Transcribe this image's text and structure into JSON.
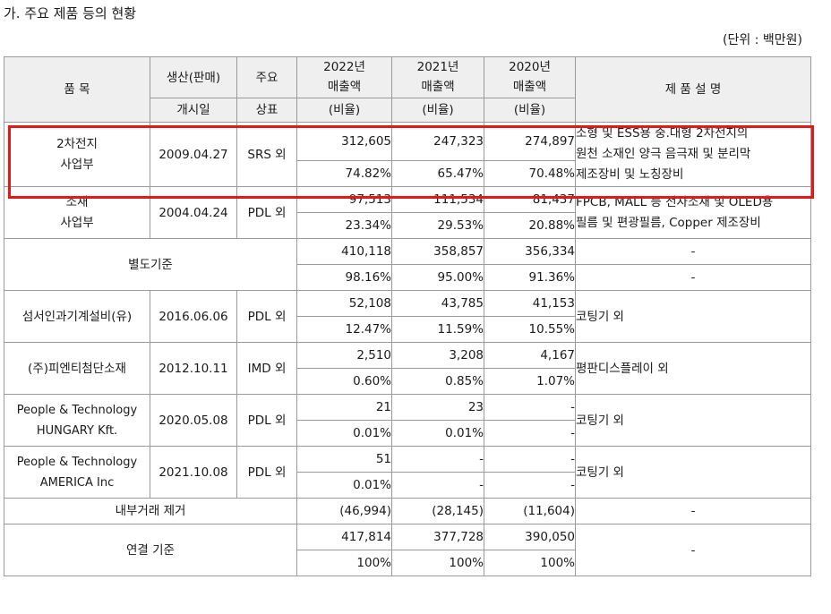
{
  "section_title": "가. 주요 제품 등의 현황",
  "unit": "(단위 : 백만원)",
  "header": {
    "item": "품 목",
    "prod_start_1": "생산(판매)",
    "prod_start_2": "개시일",
    "brand_1": "주요",
    "brand_2": "상표",
    "y2022_1": "2022년",
    "y2022_2": "매출액",
    "y2021_1": "2021년",
    "y2021_2": "매출액",
    "y2020_1": "2020년",
    "y2020_2": "매출액",
    "ratio": "(비율)",
    "desc": "제 품 설 명"
  },
  "rows": [
    {
      "name": "2차전지\n사업부",
      "date": "2009.04.27",
      "brand": "SRS 외",
      "v2022": "312,605",
      "v2021": "247,323",
      "v2020": "274,897",
      "r2022": "74.82%",
      "r2021": "65.47%",
      "r2020": "70.48%",
      "desc": "소형 및 ESS용 중.대형 2차전지의\n원천 소재인 양극 음극재 및 분리막\n제조장비 및 노칭장비"
    },
    {
      "name": "소재\n사업부",
      "date": "2004.04.24",
      "brand": "PDL 외",
      "v2022": "97,513",
      "v2021": "111,534",
      "v2020": "81,437",
      "r2022": "23.34%",
      "r2021": "29.53%",
      "r2020": "20.88%",
      "desc": "FPCB, MALL 등 전자소재 및 OLED용\n필름 및 편광필름, Copper 제조장비"
    },
    {
      "name": "별도기준",
      "v2022": "410,118",
      "v2021": "358,857",
      "v2020": "356,334",
      "r2022": "98.16%",
      "r2021": "95.00%",
      "r2020": "91.36%",
      "desc": "-",
      "desc2": "-"
    },
    {
      "name": "섬서인과기계설비(유)",
      "date": "2016.06.06",
      "brand": "PDL 외",
      "v2022": "52,108",
      "v2021": "43,785",
      "v2020": "41,153",
      "r2022": "12.47%",
      "r2021": "11.59%",
      "r2020": "10.55%",
      "desc": "코팅기 외"
    },
    {
      "name": "(주)피엔티첨단소재",
      "date": "2012.10.11",
      "brand": "IMD 외",
      "v2022": "2,510",
      "v2021": "3,208",
      "v2020": "4,167",
      "r2022": "0.60%",
      "r2021": "0.85%",
      "r2020": "1.07%",
      "desc": "평판디스플레이 외"
    },
    {
      "name": "People & Technology\nHUNGARY Kft.",
      "date": "2020.05.08",
      "brand": "PDL 외",
      "v2022": "21",
      "v2021": "23",
      "v2020": "-",
      "r2022": "0.01%",
      "r2021": "0.01%",
      "r2020": "-",
      "desc": "코팅기 외"
    },
    {
      "name": "People & Technology\nAMERICA Inc",
      "date": "2021.10.08",
      "brand": "PDL 외",
      "v2022": "51",
      "v2021": "-",
      "v2020": "-",
      "r2022": "0.01%",
      "r2021": "-",
      "r2020": "-",
      "desc": "코팅기 외"
    }
  ],
  "elimination": {
    "name": "내부거래 제거",
    "v2022": "(46,994)",
    "v2021": "(28,145)",
    "v2020": "(11,604)",
    "desc": "-"
  },
  "consolidated": {
    "name": "연결 기준",
    "v2022": "417,814",
    "v2021": "377,728",
    "v2020": "390,050",
    "r2022": "100%",
    "r2021": "100%",
    "r2020": "100%",
    "desc": "-"
  },
  "highlight_color": "#e31919"
}
